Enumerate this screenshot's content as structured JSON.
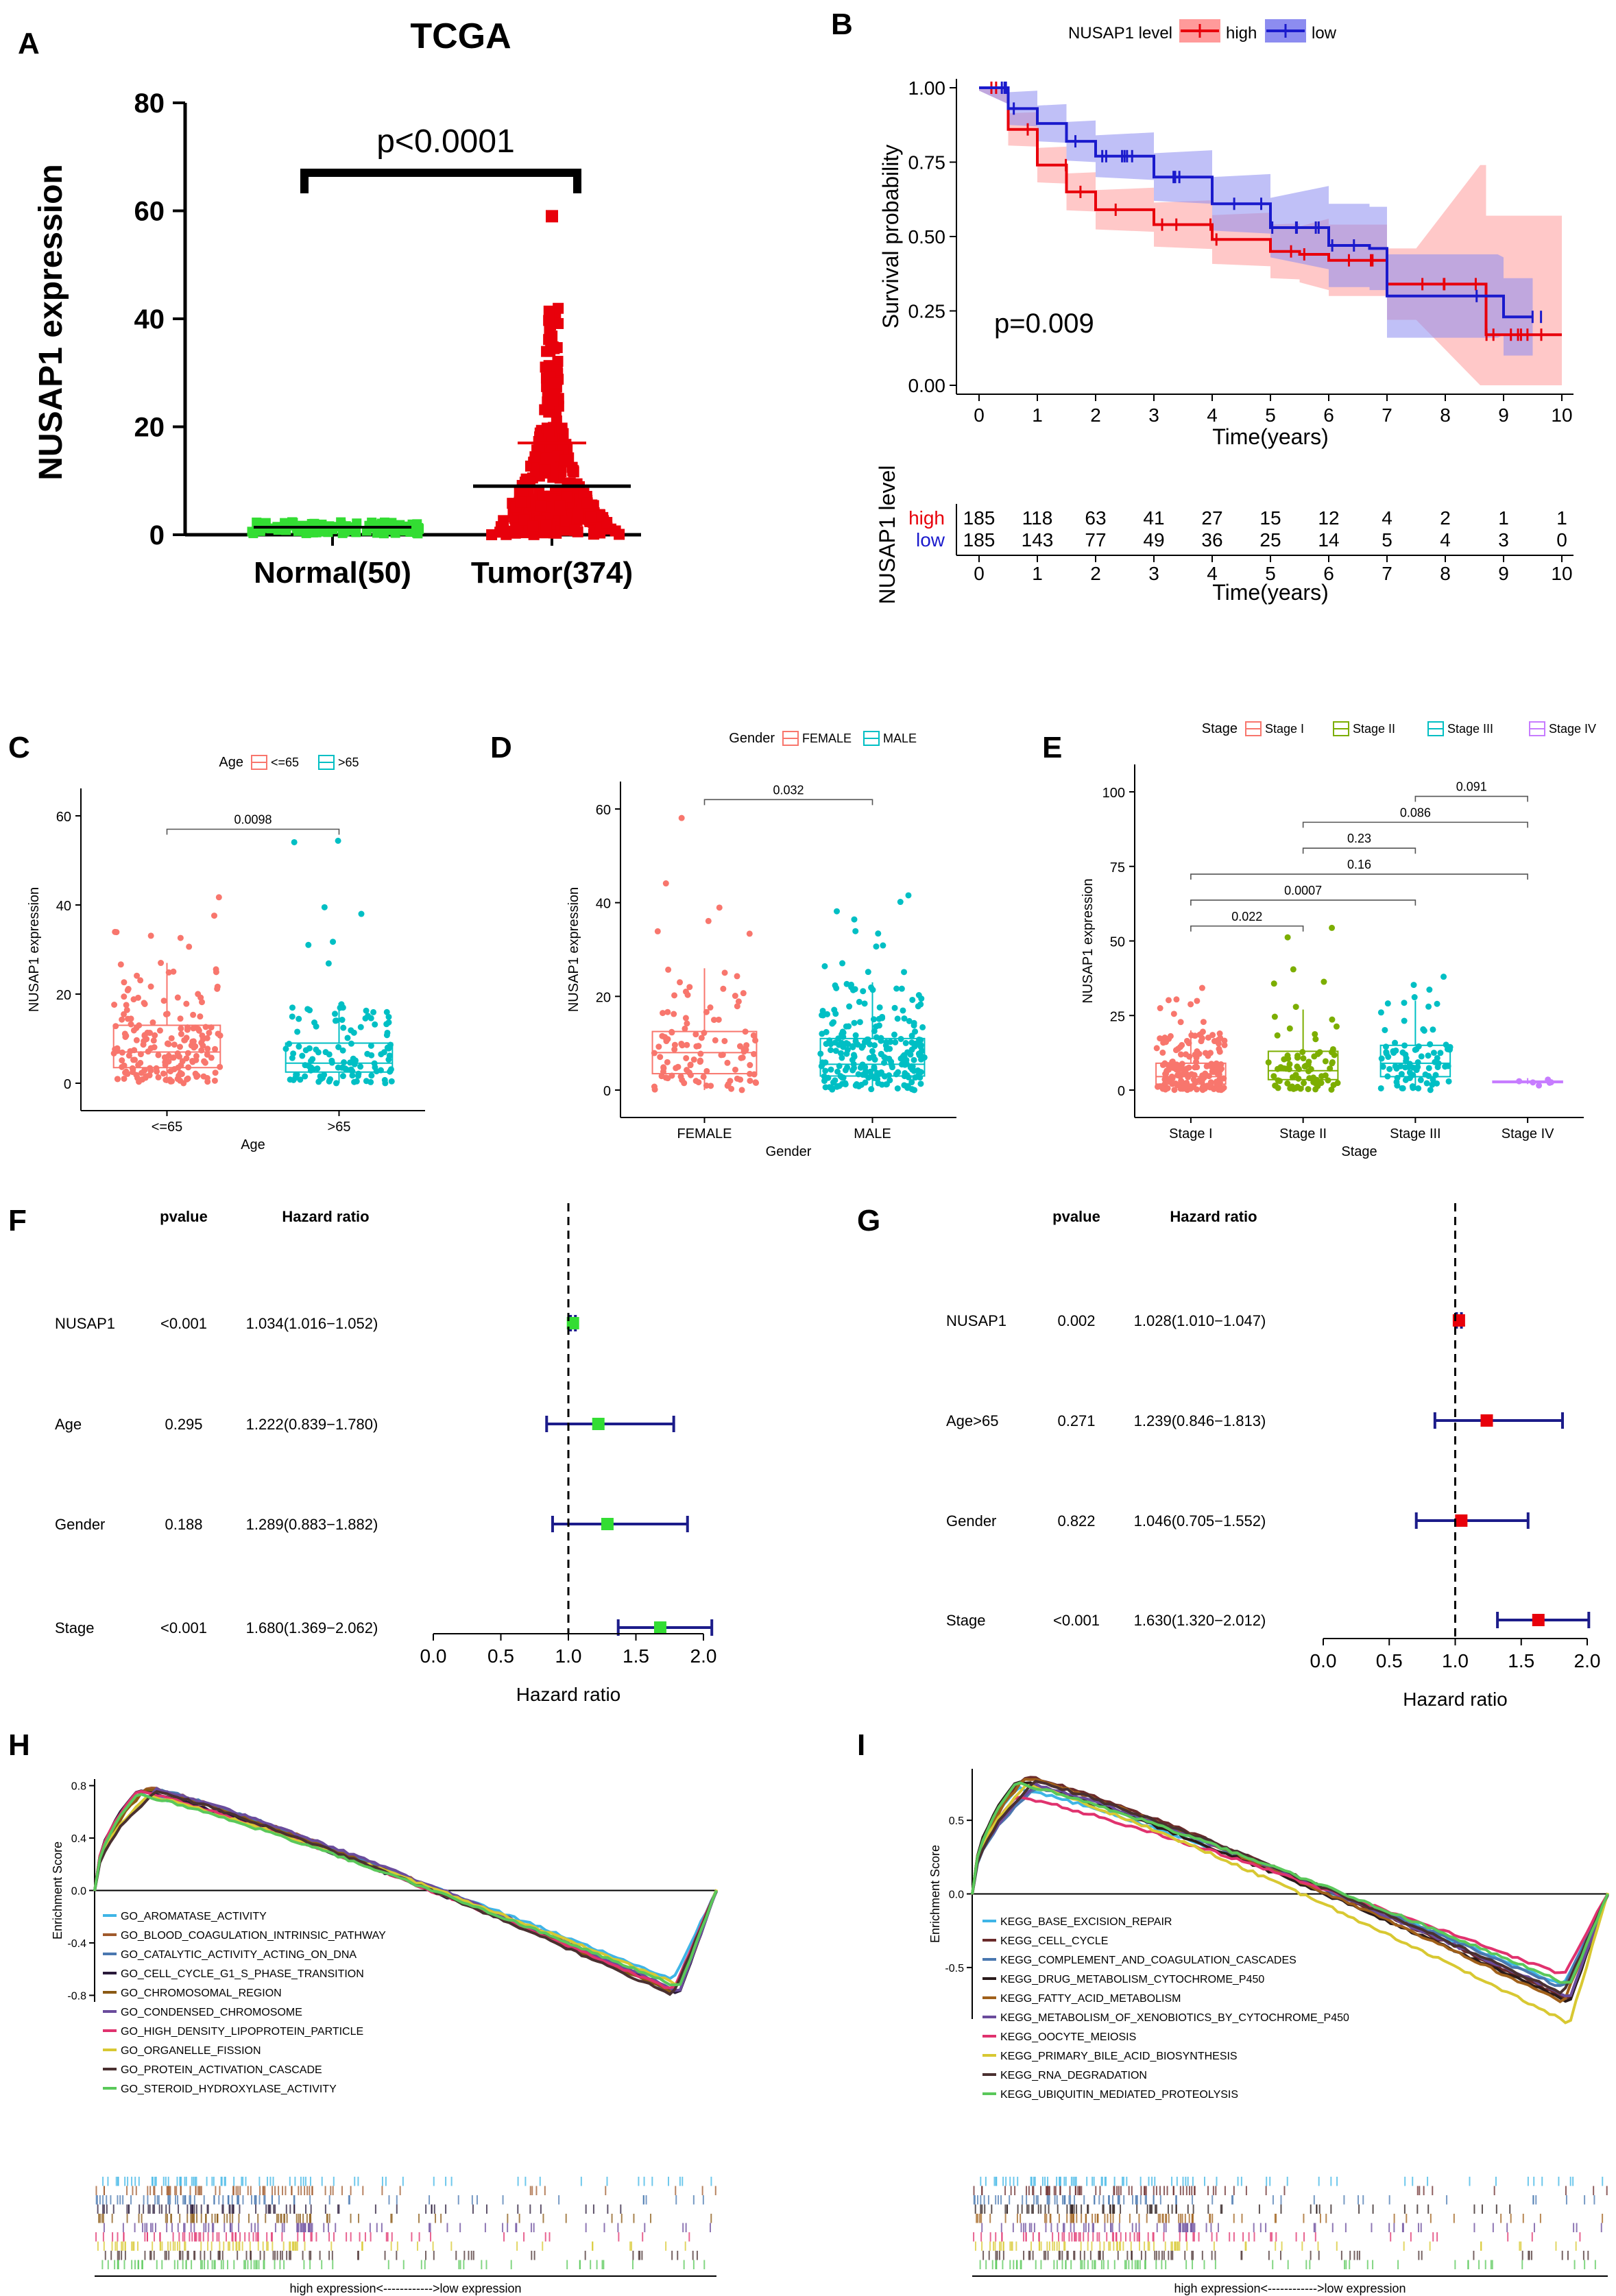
{
  "colors": {
    "red": "#e8000b",
    "blue": "#1a1acc",
    "green": "#33dd33",
    "navy": "#1c1c8a",
    "salmon": "#f8766d",
    "teal": "#00bfc4",
    "olive": "#7cae00",
    "violet": "#c77cff",
    "pink": "#ff9a9a",
    "lilac": "#8c8cf0"
  },
  "chart_data": [
    {
      "id": "A",
      "type": "scatter",
      "panel_label": "A",
      "title": "TCGA",
      "ylabel": "NUSAP1 expression",
      "ylim": [
        0,
        80
      ],
      "yticks": [
        0,
        20,
        40,
        60,
        80
      ],
      "categories": [
        "Normal(50)",
        "Tumor(374)"
      ],
      "groups": [
        {
          "name": "Normal(50)",
          "n": 50,
          "mean": 1.4,
          "max": 3.2,
          "sd": 0.6
        },
        {
          "name": "Tumor(374)",
          "n": 374,
          "mean": 9,
          "mean_plus_sd": 17,
          "max": 59
        }
      ],
      "annotations": [
        "p<0.0001"
      ]
    },
    {
      "id": "B",
      "type": "line",
      "panel_label": "B",
      "legend_title": "NUSAP1 level",
      "legend": [
        "high",
        "low"
      ],
      "ylabel": "Survival probability",
      "xlabel": "Time(years)",
      "xlim": [
        0,
        10
      ],
      "ylim": [
        0,
        1
      ],
      "xticks": [
        0,
        1,
        2,
        3,
        4,
        5,
        6,
        7,
        8,
        9,
        10
      ],
      "yticks": [
        "0.00",
        "0.25",
        "0.50",
        "0.75",
        "1.00"
      ],
      "annotations": [
        "p=0.009"
      ],
      "series": [
        {
          "name": "high",
          "x": [
            0,
            0.5,
            1,
            1.5,
            2,
            3,
            4,
            5,
            5.5,
            6,
            6.9,
            7,
            7.5,
            8.6,
            8.7,
            10
          ],
          "y": [
            1,
            0.86,
            0.74,
            0.65,
            0.59,
            0.54,
            0.49,
            0.45,
            0.44,
            0.42,
            0.42,
            0.34,
            0.34,
            0.34,
            0.17,
            0.17
          ]
        },
        {
          "name": "low",
          "x": [
            0,
            0.5,
            1,
            1.5,
            2,
            3,
            4,
            5,
            6,
            6.7,
            6.9,
            7,
            8,
            8.9,
            9,
            9.5
          ],
          "y": [
            1,
            0.93,
            0.88,
            0.82,
            0.77,
            0.7,
            0.61,
            0.53,
            0.47,
            0.46,
            0.46,
            0.3,
            0.3,
            0.3,
            0.23,
            0.23
          ]
        }
      ]
    },
    {
      "id": "B_table",
      "type": "table",
      "title": "NUSAP1 level",
      "xlabel": "Time(years)",
      "columns": [
        "0",
        "1",
        "2",
        "3",
        "4",
        "5",
        "6",
        "7",
        "8",
        "9",
        "10"
      ],
      "rows": [
        {
          "name": "high",
          "values": [
            185,
            118,
            63,
            41,
            27,
            15,
            12,
            4,
            2,
            1,
            1
          ]
        },
        {
          "name": "low",
          "values": [
            185,
            143,
            77,
            49,
            36,
            25,
            14,
            5,
            4,
            3,
            0
          ]
        }
      ]
    },
    {
      "id": "C",
      "type": "scatter",
      "panel_label": "C",
      "legend_title": "Age",
      "legend": [
        "<=65",
        ">65"
      ],
      "xlabel": "Age",
      "ylabel": "NUSAP1 expression",
      "ylim": [
        0,
        60
      ],
      "yticks": [
        0,
        20,
        40,
        60
      ],
      "categories": [
        "<=65",
        ">65"
      ],
      "boxes": [
        {
          "name": "<=65",
          "q1": 3.5,
          "median": 7,
          "q3": 13,
          "whisker_low": 0,
          "whisker_high": 27,
          "n": 190
        },
        {
          "name": ">65",
          "q1": 2.5,
          "median": 4.5,
          "q3": 9,
          "whisker_low": 0,
          "whisker_high": 18,
          "n": 120
        }
      ],
      "comparisons": [
        {
          "from": "<=65",
          "to": ">65",
          "label": "0.0098"
        }
      ]
    },
    {
      "id": "D",
      "type": "scatter",
      "panel_label": "D",
      "legend_title": "Gender",
      "legend": [
        "FEMALE",
        "MALE"
      ],
      "xlabel": "Gender",
      "ylabel": "NUSAP1 expression",
      "ylim": [
        0,
        60
      ],
      "yticks": [
        0,
        20,
        40,
        60
      ],
      "categories": [
        "FEMALE",
        "MALE"
      ],
      "boxes": [
        {
          "name": "FEMALE",
          "q1": 3.5,
          "median": 8,
          "q3": 12.5,
          "whisker_low": 0,
          "whisker_high": 26,
          "n": 110
        },
        {
          "name": "MALE",
          "q1": 3,
          "median": 5.5,
          "q3": 11,
          "whisker_low": 0,
          "whisker_high": 23,
          "n": 250
        }
      ],
      "comparisons": [
        {
          "from": "FEMALE",
          "to": "MALE",
          "label": "0.032"
        }
      ]
    },
    {
      "id": "E",
      "type": "scatter",
      "panel_label": "E",
      "legend_title": "Stage",
      "legend": [
        "Stage I",
        "Stage II",
        "Stage III",
        "Stage IV"
      ],
      "xlabel": "Stage",
      "ylabel": "NUSAP1 expression",
      "ylim": [
        0,
        100
      ],
      "yticks": [
        0,
        25,
        50,
        75,
        100
      ],
      "categories": [
        "Stage I",
        "Stage II",
        "Stage III",
        "Stage IV"
      ],
      "boxes": [
        {
          "name": "Stage I",
          "q1": 2,
          "median": 4.5,
          "q3": 9,
          "whisker_low": 0,
          "whisker_high": 20,
          "n": 170
        },
        {
          "name": "Stage II",
          "q1": 3.5,
          "median": 6.5,
          "q3": 13,
          "whisker_low": 0,
          "whisker_high": 27,
          "n": 80
        },
        {
          "name": "Stage III",
          "q1": 4.5,
          "median": 9,
          "q3": 15,
          "whisker_low": 0,
          "whisker_high": 30,
          "n": 85
        },
        {
          "name": "Stage IV",
          "q1": 2.5,
          "median": 2.8,
          "q3": 3,
          "whisker_low": 2,
          "whisker_high": 4,
          "n": 6
        }
      ],
      "comparisons": [
        {
          "from": "Stage I",
          "to": "Stage II",
          "label": "0.022"
        },
        {
          "from": "Stage I",
          "to": "Stage III",
          "label": "0.0007"
        },
        {
          "from": "Stage I",
          "to": "Stage IV",
          "label": "0.16"
        },
        {
          "from": "Stage II",
          "to": "Stage III",
          "label": "0.23"
        },
        {
          "from": "Stage II",
          "to": "Stage IV",
          "label": "0.086"
        },
        {
          "from": "Stage III",
          "to": "Stage IV",
          "label": "0.091"
        }
      ]
    },
    {
      "id": "F",
      "type": "scatter",
      "subtype": "forest",
      "panel_label": "F",
      "columns": [
        "pvalue",
        "Hazard ratio"
      ],
      "xlabel": "Hazard ratio",
      "xlim": [
        0,
        2
      ],
      "xticks": [
        "0.0",
        "0.5",
        "1.0",
        "1.5",
        "2.0"
      ],
      "reference": 1,
      "rows": [
        {
          "name": "NUSAP1",
          "pvalue": "<0.001",
          "hr_text": "1.034(1.016−1.052)",
          "hr": 1.034,
          "low": 1.016,
          "high": 1.052
        },
        {
          "name": "Age",
          "pvalue": "0.295",
          "hr_text": "1.222(0.839−1.780)",
          "hr": 1.222,
          "low": 0.839,
          "high": 1.78
        },
        {
          "name": "Gender",
          "pvalue": "0.188",
          "hr_text": "1.289(0.883−1.882)",
          "hr": 1.289,
          "low": 0.883,
          "high": 1.882
        },
        {
          "name": "Stage",
          "pvalue": "<0.001",
          "hr_text": "1.680(1.369−2.062)",
          "hr": 1.68,
          "low": 1.369,
          "high": 2.062
        }
      ]
    },
    {
      "id": "G",
      "type": "scatter",
      "subtype": "forest",
      "panel_label": "G",
      "columns": [
        "pvalue",
        "Hazard ratio"
      ],
      "xlabel": "Hazard ratio",
      "xlim": [
        0,
        2
      ],
      "xticks": [
        "0.0",
        "0.5",
        "1.0",
        "1.5",
        "2.0"
      ],
      "reference": 1,
      "rows": [
        {
          "name": "NUSAP1",
          "pvalue": "0.002",
          "hr_text": "1.028(1.010−1.047)",
          "hr": 1.028,
          "low": 1.01,
          "high": 1.047
        },
        {
          "name": "Age>65",
          "pvalue": "0.271",
          "hr_text": "1.239(0.846−1.813)",
          "hr": 1.239,
          "low": 0.846,
          "high": 1.813
        },
        {
          "name": "Gender",
          "pvalue": "0.822",
          "hr_text": "1.046(0.705−1.552)",
          "hr": 1.046,
          "low": 0.705,
          "high": 1.552
        },
        {
          "name": "Stage",
          "pvalue": "<0.001",
          "hr_text": "1.630(1.320−2.012)",
          "hr": 1.63,
          "low": 1.32,
          "high": 2.012
        }
      ]
    },
    {
      "id": "H",
      "type": "line",
      "subtype": "gsea",
      "panel_label": "H",
      "ylabel": "Enrichment Score",
      "ylim": [
        -0.85,
        0.85
      ],
      "yticks": [
        "0.8",
        "0.4",
        "0.0",
        "-0.4",
        "-0.8"
      ],
      "xlabel": "high expression<------------>low expression",
      "series": [
        {
          "name": "GO_AROMATASE_ACTIVITY",
          "color": "#3fb5e6",
          "peak": 0.74,
          "min": -0.68
        },
        {
          "name": "GO_BLOOD_COAGULATION_INTRINSIC_PATHWAY",
          "color": "#a05a2c",
          "peak": 0.79,
          "min": -0.78
        },
        {
          "name": "GO_CATALYTIC_ACTIVITY_ACTING_ON_DNA",
          "color": "#4a78b0",
          "peak": 0.77,
          "min": -0.77
        },
        {
          "name": "GO_CELL_CYCLE_G1_S_PHASE_TRANSITION",
          "color": "#2a1a3a",
          "peak": 0.77,
          "min": -0.79
        },
        {
          "name": "GO_CHROMOSOMAL_REGION",
          "color": "#8b5a14",
          "peak": 0.78,
          "min": -0.78
        },
        {
          "name": "GO_CONDENSED_CHROMOSOME",
          "color": "#6a4b9c",
          "peak": 0.77,
          "min": -0.77
        },
        {
          "name": "GO_HIGH_DENSITY_LIPOPROTEIN_PARTICLE",
          "color": "#e0326e",
          "peak": 0.76,
          "min": -0.76
        },
        {
          "name": "GO_ORGANELLE_FISSION",
          "color": "#d8c832",
          "peak": 0.72,
          "min": -0.72
        },
        {
          "name": "GO_PROTEIN_ACTIVATION_CASCADE",
          "color": "#4a3030",
          "peak": 0.75,
          "min": -0.8
        },
        {
          "name": "GO_STEROID_HYDROXYLASE_ACTIVITY",
          "color": "#5ac85a",
          "peak": 0.73,
          "min": -0.74
        }
      ]
    },
    {
      "id": "I",
      "type": "line",
      "subtype": "gsea",
      "panel_label": "I",
      "ylabel": "Enrichment Score",
      "ylim": [
        -0.85,
        0.85
      ],
      "yticks": [
        "0.5",
        "0.0",
        "-0.5"
      ],
      "xlabel": "high expression<------------>low expression",
      "series": [
        {
          "name": "KEGG_BASE_EXCISION_REPAIR",
          "color": "#3fb5e6",
          "peak": 0.72,
          "min": -0.62
        },
        {
          "name": "KEGG_CELL_CYCLE",
          "color": "#6a2a2a",
          "peak": 0.8,
          "min": -0.72
        },
        {
          "name": "KEGG_COMPLEMENT_AND_COAGULATION_CASCADES",
          "color": "#4a78b0",
          "peak": 0.72,
          "min": -0.64
        },
        {
          "name": "KEGG_DRUG_METABOLISM_CYTOCHROME_P450",
          "color": "#2a1a1a",
          "peak": 0.77,
          "min": -0.74
        },
        {
          "name": "KEGG_FATTY_ACID_METABOLISM",
          "color": "#a0601a",
          "peak": 0.79,
          "min": -0.74
        },
        {
          "name": "KEGG_METABOLISM_OF_XENOBIOTICS_BY_CYTOCHROME_P450",
          "color": "#6a4b9c",
          "peak": 0.74,
          "min": -0.7
        },
        {
          "name": "KEGG_OOCYTE_MEIOSIS",
          "color": "#e0326e",
          "peak": 0.66,
          "min": -0.55
        },
        {
          "name": "KEGG_PRIMARY_BILE_ACID_BIOSYNTHESIS",
          "color": "#d8c832",
          "peak": 0.74,
          "min": -0.88
        },
        {
          "name": "KEGG_RNA_DEGRADATION",
          "color": "#4a3030",
          "peak": 0.76,
          "min": -0.68
        },
        {
          "name": "KEGG_UBIQUITIN_MEDIATED_PROTEOLYSIS",
          "color": "#5ac85a",
          "peak": 0.75,
          "min": -0.62
        }
      ]
    }
  ]
}
